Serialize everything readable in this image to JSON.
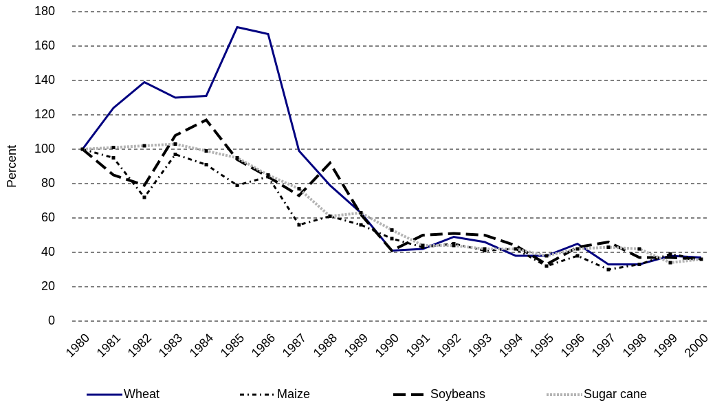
{
  "chart_data": {
    "type": "line",
    "y_label": "Percent",
    "categories": [
      "1980",
      "1981",
      "1982",
      "1983",
      "1984",
      "1985",
      "1986",
      "1987",
      "1988",
      "1989",
      "1990",
      "1991",
      "1992",
      "1993",
      "1994",
      "1995",
      "1996",
      "1997",
      "1998",
      "1999",
      "2000"
    ],
    "series": [
      {
        "name": "Wheat",
        "color": "#000080",
        "values": [
          100,
          124,
          139,
          130,
          131,
          171,
          167,
          99,
          79,
          63,
          41,
          42,
          49,
          46,
          38,
          38,
          45,
          33,
          33,
          38,
          37
        ]
      },
      {
        "name": "Maize",
        "color": "#000000",
        "values": [
          100,
          95,
          72,
          97,
          91,
          79,
          84,
          56,
          61,
          56,
          48,
          43,
          45,
          41,
          42,
          32,
          38,
          30,
          33,
          39,
          36
        ]
      },
      {
        "name": "Soybeans",
        "color": "#000000",
        "values": [
          100,
          85,
          79,
          108,
          117,
          94,
          84,
          73,
          92,
          62,
          41,
          50,
          51,
          50,
          44,
          33,
          43,
          46,
          37,
          37,
          36
        ]
      },
      {
        "name": "Sugar cane",
        "color": "#b4b4b4",
        "values": [
          100,
          101,
          102,
          103,
          99,
          95,
          85,
          77,
          61,
          63,
          53,
          44,
          44,
          42,
          42,
          38,
          42,
          43,
          42,
          34,
          36
        ]
      }
    ],
    "ylim": [
      0,
      180
    ],
    "yticks": [
      0,
      20,
      40,
      60,
      80,
      100,
      120,
      140,
      160,
      180
    ],
    "grid": true
  }
}
